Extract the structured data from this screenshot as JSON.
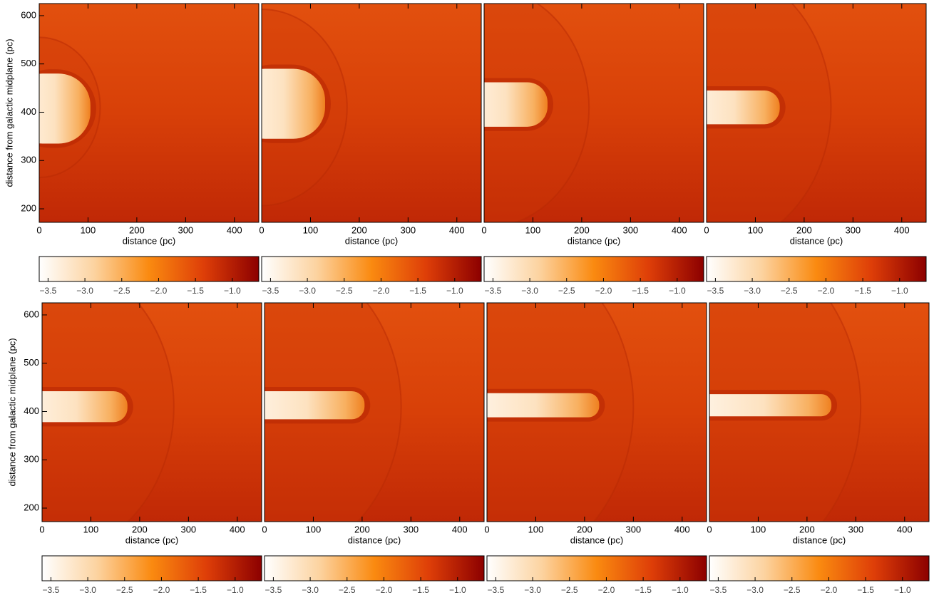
{
  "chart_data": [
    {
      "type": "heatmap",
      "xlabel": "distance (pc)",
      "ylabel": "distance from galactic midplane (pc)",
      "xlim": [
        0,
        450
      ],
      "xticks": [
        0,
        100,
        200,
        300,
        400
      ],
      "ylim": [
        172,
        625
      ],
      "yticks": [
        200,
        300,
        400,
        500,
        600
      ],
      "colorbar": {
        "lim": [
          -3.62,
          -0.64
        ],
        "ticks": [
          {
            "value": -3.5,
            "label": "−3.5"
          },
          {
            "value": -3.0,
            "label": "−3.0"
          },
          {
            "value": -2.5,
            "label": "−2.5"
          },
          {
            "value": -2.0,
            "label": "−2.0"
          },
          {
            "value": -1.5,
            "label": "−1.5"
          },
          {
            "value": -1.0,
            "label": "−1.0"
          }
        ]
      }
    },
    {
      "type": "heatmap",
      "xlabel": "distance (pc)",
      "xlim": [
        0,
        450
      ],
      "xticks": [
        0,
        100,
        200,
        300,
        400
      ],
      "ylim": [
        172,
        625
      ],
      "colorbar": {
        "lim": [
          -3.62,
          -0.64
        ],
        "ticks": [
          {
            "value": -3.5,
            "label": "−3.5"
          },
          {
            "value": -3.0,
            "label": "−3.0"
          },
          {
            "value": -2.5,
            "label": "−2.5"
          },
          {
            "value": -2.0,
            "label": "−2.0"
          },
          {
            "value": -1.5,
            "label": "−1.5"
          },
          {
            "value": -1.0,
            "label": "−1.0"
          }
        ]
      }
    },
    {
      "type": "heatmap",
      "xlabel": "distance (pc)",
      "xlim": [
        0,
        450
      ],
      "xticks": [
        0,
        100,
        200,
        300,
        400
      ],
      "ylim": [
        172,
        625
      ],
      "colorbar": {
        "lim": [
          -3.62,
          -0.64
        ],
        "ticks": [
          {
            "value": -3.5,
            "label": "−3.5"
          },
          {
            "value": -3.0,
            "label": "−3.0"
          },
          {
            "value": -2.5,
            "label": "−2.5"
          },
          {
            "value": -2.0,
            "label": "−2.0"
          },
          {
            "value": -1.5,
            "label": "−1.5"
          },
          {
            "value": -1.0,
            "label": "−1.0"
          }
        ]
      }
    },
    {
      "type": "heatmap",
      "xlabel": "distance (pc)",
      "xlim": [
        0,
        450
      ],
      "xticks": [
        0,
        100,
        200,
        300,
        400
      ],
      "ylim": [
        172,
        625
      ],
      "colorbar": {
        "lim": [
          -3.62,
          -0.64
        ],
        "ticks": [
          {
            "value": -3.5,
            "label": "−3.5"
          },
          {
            "value": -3.0,
            "label": "−3.0"
          },
          {
            "value": -2.5,
            "label": "−2.5"
          },
          {
            "value": -2.0,
            "label": "−2.0"
          },
          {
            "value": -1.5,
            "label": "−1.5"
          },
          {
            "value": -1.0,
            "label": "−1.0"
          }
        ]
      }
    },
    {
      "type": "heatmap",
      "xlabel": "distance (pc)",
      "ylabel": "distance from galactic midplane (pc)",
      "xlim": [
        0,
        450
      ],
      "xticks": [
        0,
        100,
        200,
        300,
        400
      ],
      "ylim": [
        172,
        625
      ],
      "yticks": [
        200,
        300,
        400,
        500,
        600
      ],
      "colorbar": {
        "lim": [
          -3.62,
          -0.64
        ],
        "ticks": [
          {
            "value": -3.5,
            "label": "−3.5"
          },
          {
            "value": -3.0,
            "label": "−3.0"
          },
          {
            "value": -2.5,
            "label": "−2.5"
          },
          {
            "value": -2.0,
            "label": "−2.0"
          },
          {
            "value": -1.5,
            "label": "−1.5"
          },
          {
            "value": -1.0,
            "label": "−1.0"
          }
        ]
      }
    },
    {
      "type": "heatmap",
      "xlabel": "distance (pc)",
      "xlim": [
        0,
        450
      ],
      "xticks": [
        0,
        100,
        200,
        300,
        400
      ],
      "ylim": [
        172,
        625
      ],
      "colorbar": {
        "lim": [
          -3.62,
          -0.64
        ],
        "ticks": [
          {
            "value": -3.5,
            "label": "−3.5"
          },
          {
            "value": -3.0,
            "label": "−3.0"
          },
          {
            "value": -2.5,
            "label": "−2.5"
          },
          {
            "value": -2.0,
            "label": "−2.0"
          },
          {
            "value": -1.5,
            "label": "−1.5"
          },
          {
            "value": -1.0,
            "label": "−1.0"
          }
        ]
      }
    },
    {
      "type": "heatmap",
      "xlabel": "distance (pc)",
      "xlim": [
        0,
        450
      ],
      "xticks": [
        0,
        100,
        200,
        300,
        400
      ],
      "ylim": [
        172,
        625
      ],
      "colorbar": {
        "lim": [
          -3.62,
          -0.64
        ],
        "ticks": [
          {
            "value": -3.5,
            "label": "−3.5"
          },
          {
            "value": -3.0,
            "label": "−3.0"
          },
          {
            "value": -2.5,
            "label": "−2.5"
          },
          {
            "value": -2.0,
            "label": "−2.0"
          },
          {
            "value": -1.5,
            "label": "−1.5"
          },
          {
            "value": -1.0,
            "label": "−1.0"
          }
        ]
      }
    },
    {
      "type": "heatmap",
      "xlabel": "distance (pc)",
      "xlim": [
        0,
        450
      ],
      "xticks": [
        0,
        100,
        200,
        300,
        400
      ],
      "ylim": [
        172,
        625
      ],
      "colorbar": {
        "lim": [
          -3.62,
          -0.64
        ],
        "ticks": [
          {
            "value": -3.5,
            "label": "−3.5"
          },
          {
            "value": -3.0,
            "label": "−3.0"
          },
          {
            "value": -2.5,
            "label": "−2.5"
          },
          {
            "value": -2.0,
            "label": "−2.0"
          },
          {
            "value": -1.5,
            "label": "−1.5"
          },
          {
            "value": -1.0,
            "label": "−1.0"
          }
        ]
      }
    }
  ]
}
